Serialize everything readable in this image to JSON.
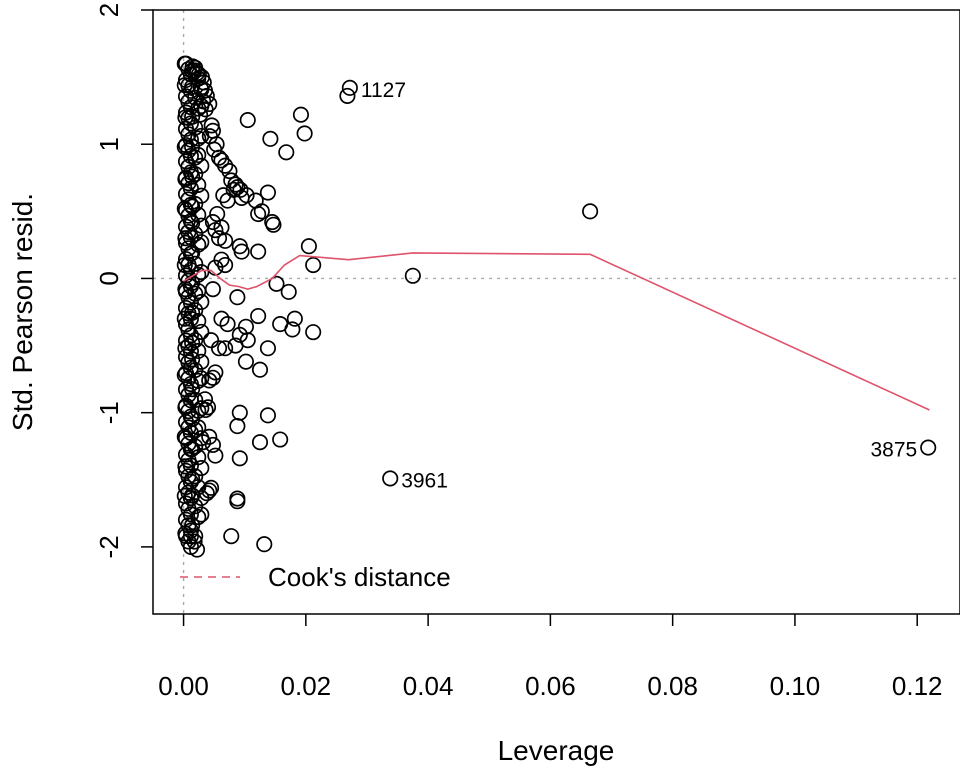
{
  "chart_data": {
    "type": "scatter",
    "xlabel": "Leverage",
    "ylabel": "Std. Pearson resid.",
    "xlim": [
      -0.005,
      0.127
    ],
    "ylim": [
      -2.5,
      2.0
    ],
    "xticks": [
      0.0,
      0.02,
      0.04,
      0.06,
      0.08,
      0.1,
      0.12
    ],
    "xtick_labels": [
      "0.00",
      "0.02",
      "0.04",
      "0.06",
      "0.08",
      "0.10",
      "0.12"
    ],
    "yticks": [
      -2,
      -1,
      0,
      1,
      2
    ],
    "ytick_labels": [
      "-2",
      "-1",
      "0",
      "1",
      "2"
    ],
    "reference_lines": {
      "x": 0,
      "y": 0,
      "style": "dotted",
      "color": "#AAAAAA"
    },
    "legend": {
      "position": "bottom-left",
      "label": "Cook's distance",
      "style": "dashed",
      "color": "#DF536B"
    },
    "point_color": "#000000",
    "smooth_color": "#DF536B",
    "points": [
      [
        0.0015,
        1.58
      ],
      [
        0.0018,
        1.55
      ],
      [
        0.0022,
        1.53
      ],
      [
        0.0025,
        1.52
      ],
      [
        0.003,
        1.5
      ],
      [
        0.0033,
        1.46
      ],
      [
        0.0028,
        1.42
      ],
      [
        0.0035,
        1.4
      ],
      [
        0.0038,
        1.36
      ],
      [
        0.0032,
        1.32
      ],
      [
        0.0042,
        1.3
      ],
      [
        0.0036,
        1.26
      ],
      [
        0.0027,
        1.22
      ],
      [
        0.0046,
        1.14
      ],
      [
        0.0048,
        1.1
      ],
      [
        0.0043,
        1.06
      ],
      [
        0.0054,
        1.0
      ],
      [
        0.005,
        0.96
      ],
      [
        0.0058,
        0.9
      ],
      [
        0.0062,
        0.88
      ],
      [
        0.0068,
        0.84
      ],
      [
        0.0075,
        0.8
      ],
      [
        0.0078,
        0.73
      ],
      [
        0.0085,
        0.7
      ],
      [
        0.0088,
        0.68
      ],
      [
        0.0082,
        0.66
      ],
      [
        0.0093,
        0.66
      ],
      [
        0.0065,
        0.62
      ],
      [
        0.0095,
        0.6
      ],
      [
        0.0072,
        0.58
      ],
      [
        0.0103,
        0.62
      ],
      [
        0.0118,
        0.58
      ],
      [
        0.0122,
        0.48
      ],
      [
        0.0128,
        0.5
      ],
      [
        0.0138,
        0.64
      ],
      [
        0.0145,
        0.42
      ],
      [
        0.0147,
        0.4
      ],
      [
        0.0055,
        0.48
      ],
      [
        0.0048,
        0.42
      ],
      [
        0.0062,
        0.38
      ],
      [
        0.0052,
        0.36
      ],
      [
        0.0058,
        0.3
      ],
      [
        0.0068,
        0.28
      ],
      [
        0.0092,
        0.24
      ],
      [
        0.0095,
        0.2
      ],
      [
        0.0122,
        0.2
      ],
      [
        0.0062,
        0.14
      ],
      [
        0.0068,
        0.1
      ],
      [
        0.0052,
        0.08
      ],
      [
        0.0152,
        -0.04
      ],
      [
        0.0172,
        -0.1
      ],
      [
        0.0088,
        -0.14
      ],
      [
        0.0048,
        -0.08
      ],
      [
        0.0062,
        -0.3
      ],
      [
        0.0072,
        -0.34
      ],
      [
        0.0092,
        -0.42
      ],
      [
        0.0102,
        -0.36
      ],
      [
        0.0122,
        -0.28
      ],
      [
        0.0158,
        -0.34
      ],
      [
        0.0182,
        -0.3
      ],
      [
        0.0178,
        -0.38
      ],
      [
        0.0212,
        -0.4
      ],
      [
        0.0105,
        -0.46
      ],
      [
        0.0085,
        -0.5
      ],
      [
        0.0068,
        -0.52
      ],
      [
        0.0058,
        -0.52
      ],
      [
        0.0045,
        -0.46
      ],
      [
        0.0138,
        -0.52
      ],
      [
        0.0102,
        -0.62
      ],
      [
        0.0125,
        -0.68
      ],
      [
        0.0052,
        -0.7
      ],
      [
        0.0048,
        -0.74
      ],
      [
        0.0042,
        -0.76
      ],
      [
        0.0035,
        -0.9
      ],
      [
        0.004,
        -0.96
      ],
      [
        0.0036,
        -0.98
      ],
      [
        0.0092,
        -1.0
      ],
      [
        0.0138,
        -1.02
      ],
      [
        0.0088,
        -1.1
      ],
      [
        0.0042,
        -1.18
      ],
      [
        0.0032,
        -1.22
      ],
      [
        0.0048,
        -1.24
      ],
      [
        0.0125,
        -1.22
      ],
      [
        0.0158,
        -1.2
      ],
      [
        0.0092,
        -1.34
      ],
      [
        0.0052,
        -1.32
      ],
      [
        0.0045,
        -1.56
      ],
      [
        0.0038,
        -1.6
      ],
      [
        0.0042,
        -1.58
      ],
      [
        0.0088,
        -1.64
      ],
      [
        0.0088,
        -1.66
      ],
      [
        0.0078,
        -1.92
      ],
      [
        0.0132,
        -1.98
      ],
      [
        0.0022,
        -2.02
      ],
      [
        0.0018,
        -1.96
      ],
      [
        0.0012,
        -1.92
      ],
      [
        0.0105,
        1.18
      ],
      [
        0.0142,
        1.04
      ],
      [
        0.0168,
        0.94
      ],
      [
        0.0192,
        1.22
      ],
      [
        0.0198,
        1.08
      ],
      [
        0.0268,
        1.36
      ],
      [
        0.0272,
        1.42
      ],
      [
        0.0205,
        0.24
      ],
      [
        0.0212,
        0.1
      ],
      [
        0.0375,
        0.02
      ],
      [
        0.0665,
        0.5
      ],
      [
        0.0338,
        -1.49
      ],
      [
        0.1218,
        -1.26
      ],
      [
        0.0002,
        1.6
      ],
      [
        0.0002,
        1.44
      ],
      [
        0.0003,
        1.2
      ],
      [
        0.0002,
        0.98
      ],
      [
        0.0003,
        0.74
      ],
      [
        0.0002,
        0.52
      ],
      [
        0.0003,
        0.3
      ],
      [
        0.0002,
        0.1
      ],
      [
        0.0003,
        -0.08
      ],
      [
        0.0002,
        -0.3
      ],
      [
        0.0003,
        -0.52
      ],
      [
        0.0002,
        -0.72
      ],
      [
        0.0003,
        -0.96
      ],
      [
        0.0002,
        -1.18
      ],
      [
        0.0003,
        -1.4
      ],
      [
        0.0002,
        -1.62
      ],
      [
        0.0003,
        -1.9
      ]
    ],
    "labeled_points": [
      {
        "label": "1127",
        "x": 0.0272,
        "y": 1.42,
        "side": "right"
      },
      {
        "label": "3961",
        "x": 0.0338,
        "y": -1.49,
        "side": "right"
      },
      {
        "label": "3875",
        "x": 0.1218,
        "y": -1.26,
        "side": "left"
      }
    ],
    "smooth_line": [
      [
        0.0,
        -0.02
      ],
      [
        0.0015,
        0.02
      ],
      [
        0.003,
        0.06
      ],
      [
        0.0045,
        0.06
      ],
      [
        0.006,
        0.0
      ],
      [
        0.0075,
        -0.05
      ],
      [
        0.009,
        -0.06
      ],
      [
        0.0105,
        -0.08
      ],
      [
        0.012,
        -0.06
      ],
      [
        0.0145,
        0.0
      ],
      [
        0.0165,
        0.1
      ],
      [
        0.019,
        0.17
      ],
      [
        0.027,
        0.14
      ],
      [
        0.0375,
        0.19
      ],
      [
        0.0665,
        0.18
      ],
      [
        0.122,
        -0.98
      ]
    ]
  }
}
